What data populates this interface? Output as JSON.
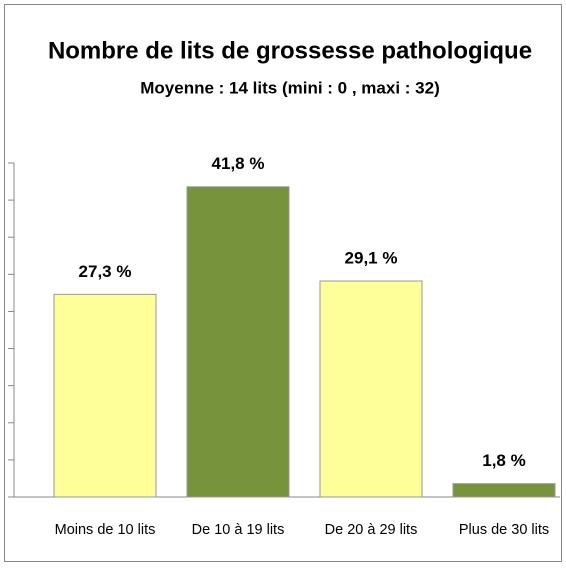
{
  "chart_data": {
    "type": "bar",
    "title": "Nombre de lits de grossesse pathologique",
    "subtitle": "Moyenne : 14 lits (mini : 0 , maxi : 32)",
    "categories": [
      "Moins de 10 lits",
      "De 10 à 19 lits",
      "De 20 à 29 lits",
      "Plus de 30 lits"
    ],
    "values": [
      27.3,
      41.8,
      29.1,
      1.8
    ],
    "value_labels": [
      "27,3 %",
      "41,8 %",
      "29,1 %",
      "1,8 %"
    ],
    "colors": [
      "#ffff99",
      "#77933c",
      "#ffff99",
      "#77933c"
    ],
    "ylim": [
      0,
      45
    ],
    "yticks": [
      0,
      5,
      10,
      15,
      20,
      25,
      30,
      35,
      40,
      45
    ],
    "grid": false
  }
}
